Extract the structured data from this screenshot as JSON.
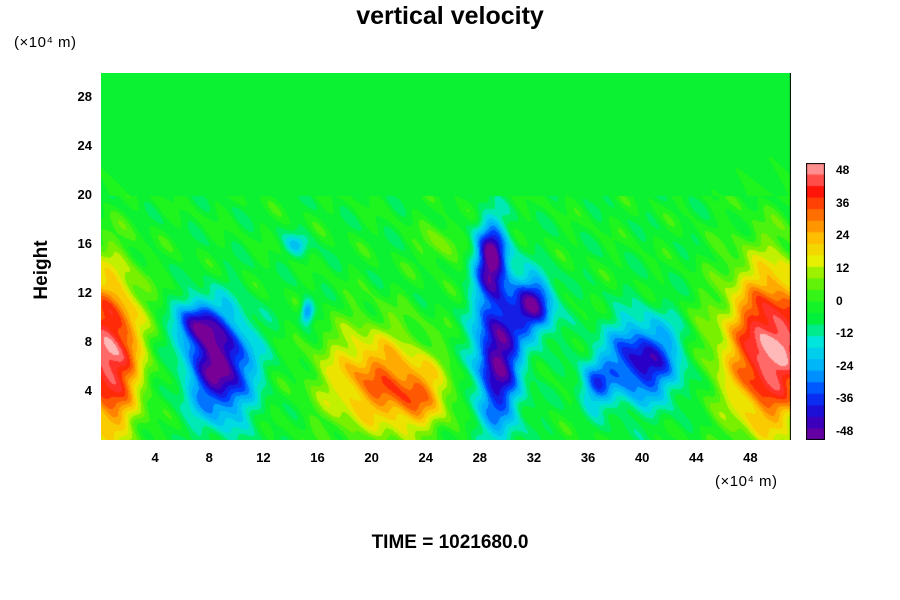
{
  "chart_data": {
    "type": "heatmap",
    "title": "vertical velocity",
    "ylabel": "Height",
    "x_unit": "(×10⁴ m)",
    "y_unit": "(×10⁴ m)",
    "x_ticks": [
      "4",
      "8",
      "12",
      "16",
      "20",
      "24",
      "28",
      "32",
      "36",
      "40",
      "44",
      "48"
    ],
    "y_ticks": [
      "4",
      "8",
      "12",
      "16",
      "20",
      "24",
      "28"
    ],
    "xlim": [
      0,
      51
    ],
    "ylim": [
      0,
      30
    ],
    "colorbar": {
      "ticks": [
        "48",
        "36",
        "24",
        "12",
        "0",
        "-12",
        "-24",
        "-36",
        "-48"
      ],
      "range": [
        -48,
        48
      ]
    },
    "features": [
      {
        "x": 0.6,
        "y": 7.0,
        "rx": 2.4,
        "ry": 7.0,
        "value": 50
      },
      {
        "x": 49.5,
        "y": 7.5,
        "rx": 3.5,
        "ry": 7.0,
        "value": 52
      },
      {
        "x": 20.0,
        "y": 5.0,
        "rx": 4.0,
        "ry": 4.5,
        "value": 30
      },
      {
        "x": 23.5,
        "y": 3.5,
        "rx": 2.5,
        "ry": 3.0,
        "value": 22
      },
      {
        "x": 8.8,
        "y": 6.0,
        "rx": 2.5,
        "ry": 4.5,
        "value": -46
      },
      {
        "x": 7.0,
        "y": 9.5,
        "rx": 1.6,
        "ry": 2.0,
        "value": -30
      },
      {
        "x": 29.3,
        "y": 7.0,
        "rx": 1.8,
        "ry": 6.5,
        "value": -44
      },
      {
        "x": 28.8,
        "y": 15.0,
        "rx": 1.2,
        "ry": 3.0,
        "value": -40
      },
      {
        "x": 32.0,
        "y": 11.0,
        "rx": 1.5,
        "ry": 2.5,
        "value": -40
      },
      {
        "x": 40.0,
        "y": 6.5,
        "rx": 3.0,
        "ry": 3.5,
        "value": -38
      },
      {
        "x": 36.5,
        "y": 4.5,
        "rx": 1.2,
        "ry": 2.0,
        "value": -22
      },
      {
        "x": 15.2,
        "y": 10.5,
        "rx": 0.5,
        "ry": 1.0,
        "value": -28
      },
      {
        "x": 14.5,
        "y": 16.0,
        "rx": 1.0,
        "ry": 1.0,
        "value": -14
      },
      {
        "x": 25.0,
        "y": 16.0,
        "rx": 1.5,
        "ry": 2.0,
        "value": 10
      },
      {
        "x": 44.5,
        "y": 8.0,
        "rx": 1.2,
        "ry": 3.0,
        "value": 6
      }
    ]
  },
  "footer": {
    "time_label": "TIME = 1021680.0"
  }
}
